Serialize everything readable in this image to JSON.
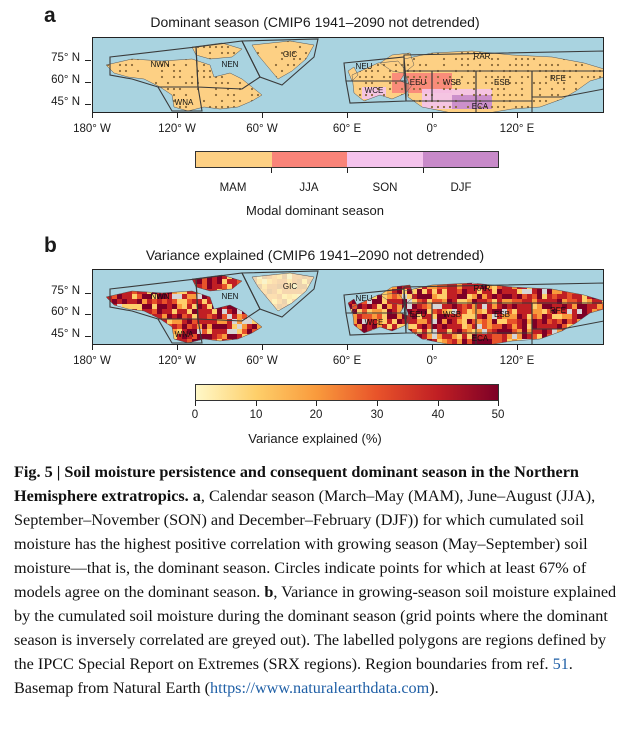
{
  "panel_a": {
    "letter": "a",
    "title": "Dominant season (CMIP6 1941–2090 not detrended)",
    "lat_labels": [
      "75° N",
      "60° N",
      "45° N"
    ],
    "lon_labels": [
      "180° W",
      "120° W",
      "60° W",
      "60° E",
      "0°",
      "120° E"
    ],
    "colorbar": {
      "categories": [
        "MAM",
        "JJA",
        "SON",
        "DJF"
      ],
      "colors": [
        "#fdd084",
        "#f98479",
        "#f4c3ec",
        "#c88ac9"
      ],
      "title": "Modal dominant season"
    }
  },
  "panel_b": {
    "letter": "b",
    "title": "Variance explained (CMIP6 1941–2090 not detrended)",
    "lat_labels": [
      "75° N",
      "60° N",
      "45° N"
    ],
    "lon_labels": [
      "180° W",
      "120° W",
      "60° W",
      "60° E",
      "0°",
      "120° E"
    ],
    "colorbar": {
      "ticks": [
        "0",
        "10",
        "20",
        "30",
        "40",
        "50"
      ],
      "range": [
        0,
        50
      ],
      "colors": [
        "#fff8c8",
        "#fecf6a",
        "#f99a3c",
        "#e8532a",
        "#c01f24",
        "#7d0026"
      ],
      "title": "Variance explained (%)"
    }
  },
  "regions": [
    "NWN",
    "NEN",
    "WNA",
    "GIC",
    "NEU",
    "WCE",
    "EEU",
    "WSB",
    "ESB",
    "RAR",
    "RFE",
    "ECA"
  ],
  "colors": {
    "ocean": "#a9d3e0",
    "land_grey": "#d6d6d6",
    "outline": "#3a3a3a"
  },
  "caption": {
    "heading": "Fig. 5 | Soil moisture persistence and consequent dominant season in the Northern Hemisphere extratropics.",
    "a_label": "a",
    "part_a": ", Calendar season (March–May (MAM), June–August (JJA), September–November (SON) and December–February (DJF)) for which cumulated soil moisture has the highest positive correlation with growing season (May–September) soil moisture—that is, the dominant season. Circles indicate points for which at least 67% of models agree on the dominant season. ",
    "b_label": "b",
    "part_b": ", Variance in growing-season soil moisture explained by the cumulated soil moisture during the dominant season (grid points where the dominant season is inversely correlated are greyed out). The labelled polygons are regions defined by the IPCC Special Report on Extremes (SRX regions). Region boundaries from ref. ",
    "ref_number": "51",
    "part_c": ". Basemap from Natural Earth (",
    "url": "https://www.naturalearthdata.com",
    "part_d": ")."
  }
}
